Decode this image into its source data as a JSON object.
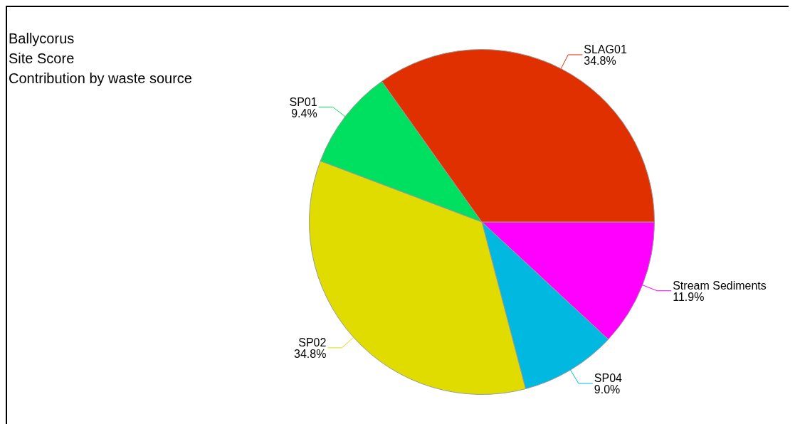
{
  "chart_data": {
    "type": "pie",
    "title": "Ballycorus",
    "subtitle": "Site Score",
    "annotations": [
      "Contribution by waste source"
    ],
    "categories": [
      "Stream Sediments",
      "SP04",
      "SP02",
      "SP01",
      "SLAG01"
    ],
    "values": [
      11.9,
      9.0,
      34.8,
      9.4,
      34.8
    ],
    "value_labels": [
      "11.9%",
      "9.0%",
      "34.8%",
      "9.4%",
      "34.8%"
    ],
    "colors": [
      "#ff00ff",
      "#00b8e0",
      "#e0dc00",
      "#00e060",
      "#e03000"
    ],
    "legend": false
  }
}
